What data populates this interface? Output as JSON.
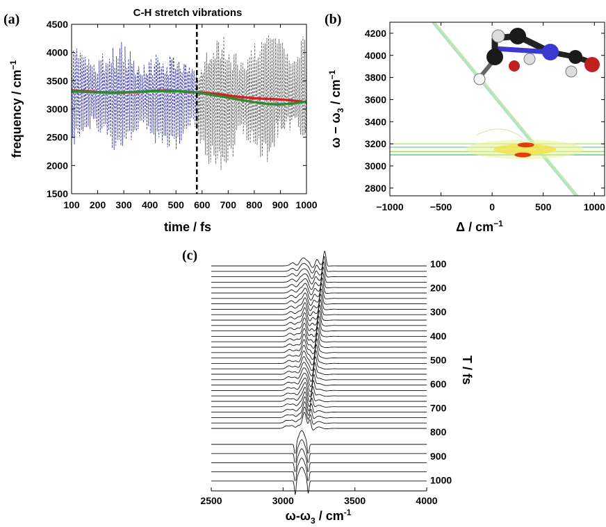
{
  "panels": {
    "a": "(a)",
    "b": "(b)",
    "c": "(c)"
  },
  "colors": {
    "blue": "#2b2ba8",
    "grey": "#555555",
    "red": "#d42020",
    "green": "#2e8b2e"
  },
  "chart_data": [
    {
      "type": "line",
      "panel": "a",
      "title": "C-H stretch vibrations",
      "xlabel": "time / fs",
      "ylabel": "frequency / cm",
      "ylabel_sup": "−1",
      "xlim": [
        100,
        1000
      ],
      "ylim": [
        1500,
        4500
      ],
      "xticks": [
        100,
        200,
        300,
        400,
        500,
        600,
        700,
        800,
        900,
        1000
      ],
      "yticks": [
        1500,
        2000,
        2500,
        3000,
        3500,
        4000,
        4500
      ],
      "vline_x": 580,
      "series": [
        {
          "style": "dashed-blue",
          "x": [
            100,
            580
          ],
          "center": 3300,
          "amplitude": 950
        },
        {
          "style": "dashed-grey",
          "x": [
            580,
            1000
          ],
          "center": 3200,
          "amplitude": 1150
        },
        {
          "style": "solid-red",
          "x": [
            100,
            150,
            200,
            250,
            300,
            350,
            400,
            450,
            500,
            550,
            600,
            650,
            700,
            750,
            800,
            850,
            900,
            950,
            1000
          ],
          "y": [
            3330,
            3320,
            3300,
            3290,
            3290,
            3300,
            3320,
            3330,
            3320,
            3300,
            3290,
            3270,
            3240,
            3210,
            3190,
            3180,
            3170,
            3150,
            3120
          ]
        },
        {
          "style": "solid-green",
          "x": [
            100,
            150,
            200,
            250,
            300,
            350,
            400,
            450,
            500,
            550,
            600,
            650,
            700,
            750,
            800,
            850,
            900,
            950,
            1000
          ],
          "y": [
            3310,
            3305,
            3295,
            3290,
            3295,
            3305,
            3315,
            3320,
            3315,
            3305,
            3280,
            3240,
            3200,
            3160,
            3120,
            3090,
            3080,
            3100,
            3130
          ]
        }
      ]
    },
    {
      "type": "heatmap",
      "panel": "b",
      "xlabel": "Δ / cm",
      "xlabel_sup": "−1",
      "ylabel_main": "ω − ω",
      "ylabel_sub": "3",
      "ylabel_tail": " / cm",
      "ylabel_sup": "−1",
      "xlim": [
        -1000,
        1100
      ],
      "ylim": [
        2730,
        4300
      ],
      "xticks": [
        -1000,
        -500,
        0,
        500,
        1000
      ],
      "yticks": [
        2800,
        3000,
        3200,
        3400,
        3600,
        3800,
        4000,
        4200
      ],
      "hot_spots": [
        [
          330,
          3190
        ],
        [
          300,
          3100
        ]
      ],
      "bands_y": [
        3100,
        3130,
        3170,
        3200
      ]
    },
    {
      "type": "line",
      "panel": "c",
      "xlabel_main": "ω-ω",
      "xlabel_sub": "3",
      "xlabel_tail": " / cm",
      "xlabel_sup": "-1",
      "ylabel": "T / fs",
      "xlim": [
        2500,
        4000
      ],
      "xticks": [
        2500,
        3000,
        3500,
        4000
      ],
      "t_labels": [
        100,
        200,
        300,
        400,
        500,
        600,
        700,
        800,
        900,
        1000
      ],
      "traces": 36
    }
  ]
}
